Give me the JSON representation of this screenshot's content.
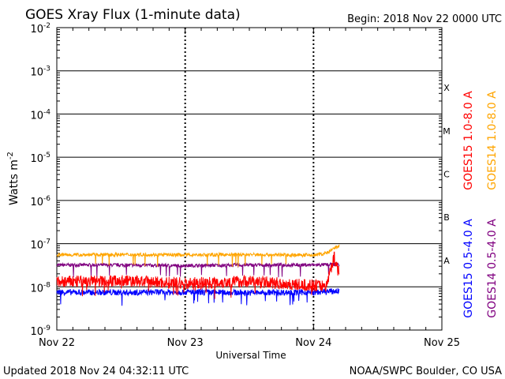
{
  "chart_data": {
    "type": "line",
    "title": "GOES Xray Flux (1-minute data)",
    "begin_label": "Begin:  2018 Nov 22 0000 UTC",
    "xlabel": "Universal Time",
    "ylabel": "Watts m",
    "ylabel_exponent": "-2",
    "yscale": "log",
    "ylim": [
      1e-09,
      0.01
    ],
    "ytick_exponents": [
      "-2",
      "-3",
      "-4",
      "-5",
      "-6",
      "-7",
      "-8",
      "-9"
    ],
    "ytick_base": "10",
    "xticks": [
      "Nov 22",
      "Nov 23",
      "Nov 24",
      "Nov 25"
    ],
    "xlim_days": [
      0,
      3
    ],
    "flare_classes": [
      "X",
      "M",
      "C",
      "B",
      "A"
    ],
    "footer_left": "Updated 2018 Nov 24 04:32:11 UTC",
    "footer_right": "NOAA/SWPC Boulder, CO USA",
    "series": [
      {
        "name": "GOES15 1.0-8.0 A",
        "color": "#ff0000",
        "x_days": [
          0,
          0.5,
          1.0,
          1.5,
          1.9,
          2.1,
          2.16,
          2.2
        ],
        "values": [
          1.3e-08,
          1.4e-08,
          1.2e-08,
          1.35e-08,
          1.1e-08,
          1.05e-08,
          5e-08,
          2e-08
        ]
      },
      {
        "name": "GOES14 1.0-8.0 A",
        "color": "#ffa500",
        "x_days": [
          0,
          0.5,
          1.0,
          1.5,
          2.0,
          2.1,
          2.2
        ],
        "values": [
          5.5e-08,
          5.6e-08,
          5.5e-08,
          5.6e-08,
          5.4e-08,
          6e-08,
          9e-08
        ]
      },
      {
        "name": "GOES15 0.5-4.0 A",
        "color": "#0000ff",
        "x_days": [
          0,
          0.5,
          1.0,
          1.5,
          2.0,
          2.2
        ],
        "values": [
          7.5e-09,
          7.4e-09,
          7.6e-09,
          7.3e-09,
          7.5e-09,
          8e-09
        ]
      },
      {
        "name": "GOES14 0.5-4.0 A",
        "color": "#800080",
        "x_days": [
          0,
          0.5,
          1.0,
          1.5,
          2.0,
          2.2
        ],
        "values": [
          3.2e-08,
          3.2e-08,
          3.1e-08,
          3.2e-08,
          3.2e-08,
          3.3e-08
        ]
      }
    ]
  }
}
